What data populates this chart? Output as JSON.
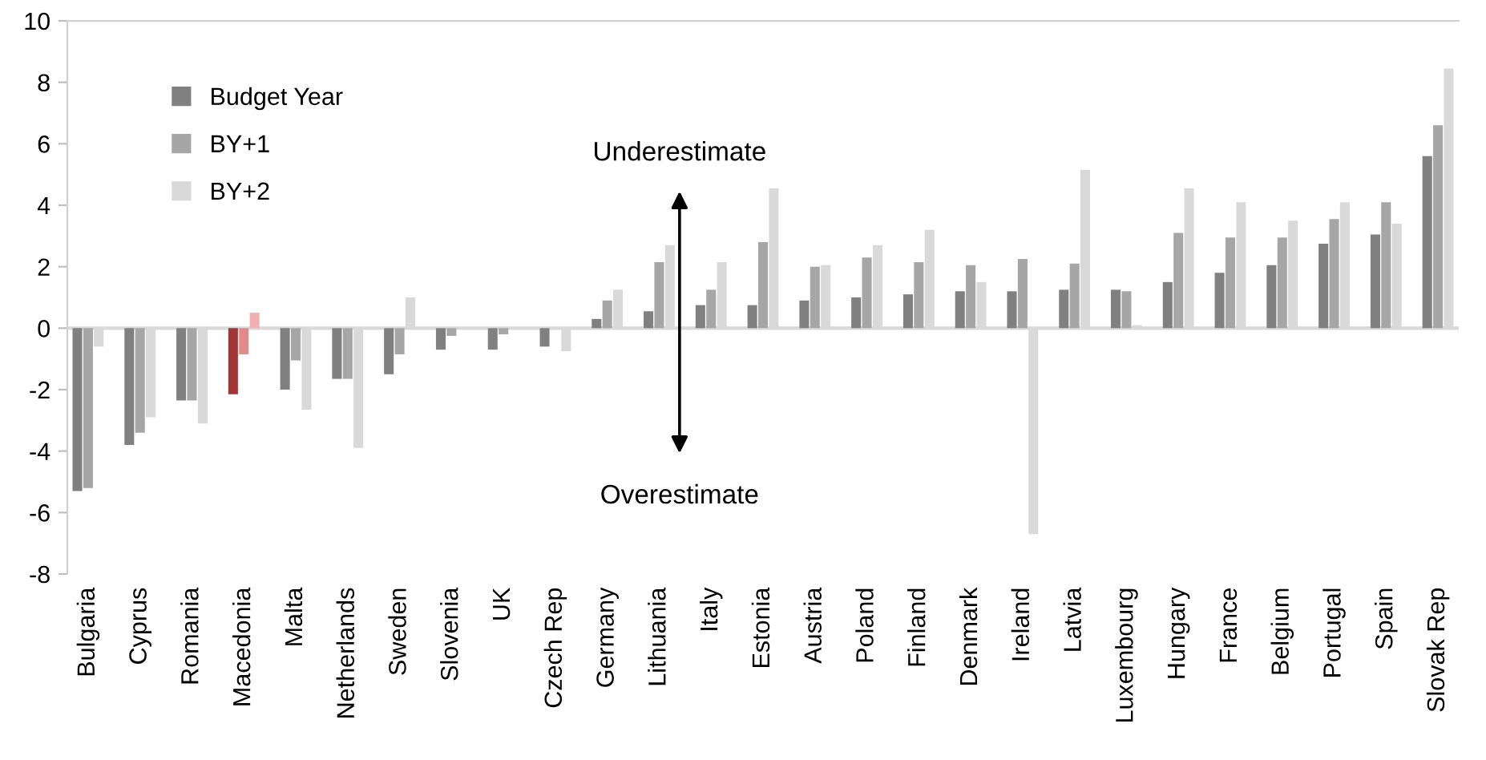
{
  "chart_data": {
    "type": "bar",
    "categories": [
      "Bulgaria",
      "Cyprus",
      "Romania",
      "Macedonia",
      "Malta",
      "Netherlands",
      "Sweden",
      "Slovenia",
      "UK",
      "Czech Rep",
      "Germany",
      "Lithuania",
      "Italy",
      "Estonia",
      "Austria",
      "Poland",
      "Finland",
      "Denmark",
      "Ireland",
      "Latvia",
      "Luxembourg",
      "Hungary",
      "France",
      "Belgium",
      "Portugal",
      "Spain",
      "Slovak Rep"
    ],
    "series": [
      {
        "name": "Budget Year",
        "color": "#808080",
        "colors": [
          "#808080",
          "#808080",
          "#808080",
          "#a33535",
          "#808080",
          "#808080",
          "#808080",
          "#808080",
          "#808080",
          "#808080",
          "#808080",
          "#808080",
          "#808080",
          "#808080",
          "#808080",
          "#808080",
          "#808080",
          "#808080",
          "#808080",
          "#808080",
          "#808080",
          "#808080",
          "#808080",
          "#808080",
          "#808080",
          "#808080",
          "#808080"
        ],
        "values": [
          -5.3,
          -3.8,
          -2.35,
          -2.15,
          -2.0,
          -1.65,
          -1.5,
          -0.7,
          -0.7,
          -0.6,
          0.3,
          0.55,
          0.75,
          0.75,
          0.9,
          1.0,
          1.1,
          1.2,
          1.2,
          1.25,
          1.25,
          1.5,
          1.8,
          2.05,
          2.75,
          3.05,
          5.6
        ]
      },
      {
        "name": "BY+1",
        "color": "#a6a6a6",
        "colors": [
          "#a6a6a6",
          "#a6a6a6",
          "#a6a6a6",
          "#e08a8a",
          "#a6a6a6",
          "#a6a6a6",
          "#a6a6a6",
          "#a6a6a6",
          "#a6a6a6",
          "#a6a6a6",
          "#a6a6a6",
          "#a6a6a6",
          "#a6a6a6",
          "#a6a6a6",
          "#a6a6a6",
          "#a6a6a6",
          "#a6a6a6",
          "#a6a6a6",
          "#a6a6a6",
          "#a6a6a6",
          "#a6a6a6",
          "#a6a6a6",
          "#a6a6a6",
          "#a6a6a6",
          "#a6a6a6",
          "#a6a6a6",
          "#a6a6a6"
        ],
        "values": [
          -5.2,
          -3.4,
          -2.35,
          -0.85,
          -1.05,
          -1.65,
          -0.85,
          -0.25,
          -0.2,
          0.0,
          0.9,
          2.15,
          1.25,
          2.8,
          2.0,
          2.3,
          2.15,
          2.05,
          2.25,
          2.1,
          1.2,
          3.1,
          2.95,
          2.95,
          3.55,
          4.1,
          6.6
        ]
      },
      {
        "name": "BY+2",
        "color": "#d9d9d9",
        "colors": [
          "#d9d9d9",
          "#d9d9d9",
          "#d9d9d9",
          "#eeb0b0",
          "#d9d9d9",
          "#d9d9d9",
          "#d9d9d9",
          "#d9d9d9",
          "#d9d9d9",
          "#d9d9d9",
          "#d9d9d9",
          "#d9d9d9",
          "#d9d9d9",
          "#d9d9d9",
          "#d9d9d9",
          "#d9d9d9",
          "#d9d9d9",
          "#d9d9d9",
          "#d9d9d9",
          "#d9d9d9",
          "#d9d9d9",
          "#d9d9d9",
          "#d9d9d9",
          "#d9d9d9",
          "#d9d9d9",
          "#d9d9d9",
          "#d9d9d9"
        ],
        "values": [
          -0.6,
          -2.9,
          -3.1,
          0.5,
          -2.65,
          -3.9,
          1.0,
          0.0,
          0.0,
          -0.75,
          1.25,
          2.7,
          2.15,
          4.55,
          2.05,
          2.7,
          3.2,
          1.5,
          -6.7,
          5.15,
          0.1,
          4.55,
          4.1,
          3.5,
          4.1,
          3.4,
          8.45
        ]
      }
    ],
    "ylim": [
      -8,
      10
    ],
    "yticks": [
      -8,
      -6,
      -4,
      -2,
      0,
      2,
      4,
      6,
      8,
      10
    ],
    "ref_lines": [
      {
        "axis": "y",
        "value": 0,
        "color": "#d9d9d9"
      }
    ],
    "annotations": [
      "Underestimate",
      "Overestimate"
    ],
    "legend": "top left",
    "grid": false
  }
}
